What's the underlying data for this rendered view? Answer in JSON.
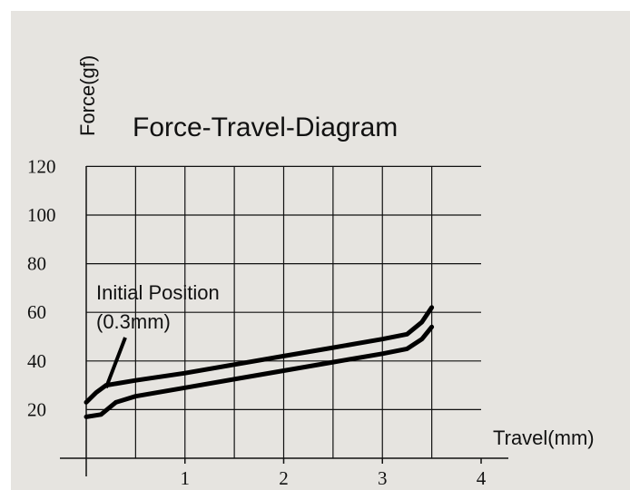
{
  "chart_data": {
    "type": "line",
    "title": "Force-Travel-Diagram",
    "xlabel": "Travel(mm)",
    "ylabel": "Force(gf)",
    "xlim": [
      0,
      4
    ],
    "ylim": [
      0,
      120
    ],
    "x_ticks": [
      "1",
      "2",
      "3",
      "4"
    ],
    "y_ticks": [
      "20",
      "40",
      "60",
      "80",
      "100",
      "120"
    ],
    "grid": true,
    "annotation": {
      "lines": [
        "Initial Position",
        "(0.3mm)"
      ],
      "points_to": [
        0.2,
        29
      ]
    },
    "series": [
      {
        "x": [
          0.0,
          0.1,
          0.2,
          0.5,
          1.0,
          1.5,
          2.0,
          2.5,
          3.0,
          3.25,
          3.4,
          3.5
        ],
        "y": [
          23,
          27,
          30,
          32,
          35,
          38.5,
          42,
          45.5,
          49,
          51,
          56,
          62
        ]
      },
      {
        "x": [
          0.0,
          0.15,
          0.3,
          0.5,
          1.0,
          1.5,
          2.0,
          2.5,
          3.0,
          3.25,
          3.4,
          3.5
        ],
        "y": [
          17,
          18,
          23,
          25.5,
          29,
          32.5,
          36,
          39.5,
          43,
          45,
          49,
          54
        ]
      }
    ]
  }
}
